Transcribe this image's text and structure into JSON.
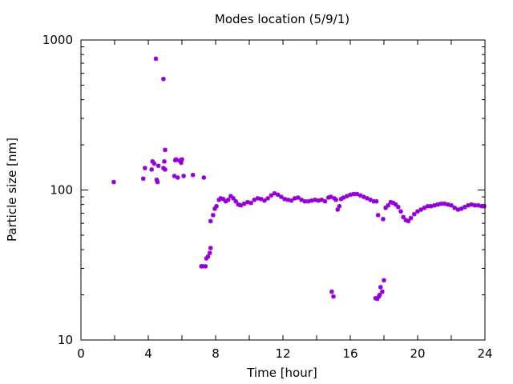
{
  "chart_data": {
    "type": "scatter",
    "title": "Modes location (5/9/1)",
    "xlabel": "Time [hour]",
    "ylabel": "Particle size [nm]",
    "xlim": [
      0,
      24
    ],
    "ylim": [
      10,
      1000
    ],
    "yscale": "log",
    "x_ticks": [
      "0",
      "4",
      "8",
      "12",
      "16",
      "20",
      "24"
    ],
    "y_ticks": [
      "10",
      "100",
      "1000"
    ],
    "grid": false,
    "legend": "none",
    "marker_color": "#9400d3",
    "points": [
      [
        1.95,
        113
      ],
      [
        3.7,
        119
      ],
      [
        3.8,
        140
      ],
      [
        4.2,
        137
      ],
      [
        4.25,
        155
      ],
      [
        4.35,
        150
      ],
      [
        4.45,
        750
      ],
      [
        4.5,
        117
      ],
      [
        4.55,
        113
      ],
      [
        4.6,
        145
      ],
      [
        4.9,
        550
      ],
      [
        4.9,
        140
      ],
      [
        4.95,
        155
      ],
      [
        5.0,
        185
      ],
      [
        5.0,
        137
      ],
      [
        5.55,
        124
      ],
      [
        5.6,
        158
      ],
      [
        5.65,
        160
      ],
      [
        5.75,
        121
      ],
      [
        5.85,
        157
      ],
      [
        5.95,
        152
      ],
      [
        6.0,
        160
      ],
      [
        6.1,
        124
      ],
      [
        6.65,
        126
      ],
      [
        7.15,
        31
      ],
      [
        7.25,
        31
      ],
      [
        7.3,
        121
      ],
      [
        7.4,
        31
      ],
      [
        7.45,
        35
      ],
      [
        7.55,
        36
      ],
      [
        7.65,
        38
      ],
      [
        7.7,
        41
      ],
      [
        7.7,
        62
      ],
      [
        7.85,
        68
      ],
      [
        7.95,
        75
      ],
      [
        8.05,
        78
      ],
      [
        8.2,
        86
      ],
      [
        8.3,
        88
      ],
      [
        8.45,
        87
      ],
      [
        8.6,
        84
      ],
      [
        8.75,
        86
      ],
      [
        8.9,
        91
      ],
      [
        9.05,
        88
      ],
      [
        9.2,
        84
      ],
      [
        9.35,
        80
      ],
      [
        9.5,
        79
      ],
      [
        9.7,
        81
      ],
      [
        9.9,
        83
      ],
      [
        10.1,
        82
      ],
      [
        10.3,
        86
      ],
      [
        10.5,
        88
      ],
      [
        10.7,
        87
      ],
      [
        10.9,
        85
      ],
      [
        11.1,
        88
      ],
      [
        11.3,
        92
      ],
      [
        11.5,
        95
      ],
      [
        11.7,
        93
      ],
      [
        11.9,
        90
      ],
      [
        12.1,
        87
      ],
      [
        12.3,
        86
      ],
      [
        12.5,
        85
      ],
      [
        12.7,
        88
      ],
      [
        12.9,
        89
      ],
      [
        13.1,
        86
      ],
      [
        13.3,
        84
      ],
      [
        13.5,
        84
      ],
      [
        13.7,
        85
      ],
      [
        13.9,
        86
      ],
      [
        14.1,
        85
      ],
      [
        14.3,
        86
      ],
      [
        14.5,
        84
      ],
      [
        14.7,
        89
      ],
      [
        14.85,
        90
      ],
      [
        14.9,
        21
      ],
      [
        15.0,
        19.5
      ],
      [
        15.05,
        88
      ],
      [
        15.15,
        86
      ],
      [
        15.25,
        74
      ],
      [
        15.35,
        78
      ],
      [
        15.45,
        87
      ],
      [
        15.6,
        89
      ],
      [
        15.8,
        91
      ],
      [
        16.0,
        93
      ],
      [
        16.2,
        94
      ],
      [
        16.4,
        94
      ],
      [
        16.6,
        92
      ],
      [
        16.8,
        90
      ],
      [
        17.0,
        88
      ],
      [
        17.2,
        86
      ],
      [
        17.4,
        84
      ],
      [
        17.5,
        19
      ],
      [
        17.55,
        84
      ],
      [
        17.6,
        18.8
      ],
      [
        17.65,
        68
      ],
      [
        17.7,
        19.5
      ],
      [
        17.75,
        20
      ],
      [
        17.8,
        22.5
      ],
      [
        17.9,
        21
      ],
      [
        17.95,
        64
      ],
      [
        18.0,
        25
      ],
      [
        18.1,
        76
      ],
      [
        18.25,
        79
      ],
      [
        18.4,
        83
      ],
      [
        18.55,
        82
      ],
      [
        18.7,
        80
      ],
      [
        18.85,
        77
      ],
      [
        19.0,
        72
      ],
      [
        19.15,
        66
      ],
      [
        19.3,
        63
      ],
      [
        19.45,
        62
      ],
      [
        19.6,
        65
      ],
      [
        19.8,
        69
      ],
      [
        20.0,
        72
      ],
      [
        20.2,
        74
      ],
      [
        20.4,
        76
      ],
      [
        20.6,
        78
      ],
      [
        20.8,
        78
      ],
      [
        21.0,
        79
      ],
      [
        21.2,
        80
      ],
      [
        21.4,
        81
      ],
      [
        21.6,
        81
      ],
      [
        21.8,
        80
      ],
      [
        22.0,
        79
      ],
      [
        22.2,
        76
      ],
      [
        22.4,
        74
      ],
      [
        22.6,
        75
      ],
      [
        22.8,
        77
      ],
      [
        23.0,
        79
      ],
      [
        23.2,
        80
      ],
      [
        23.4,
        79
      ],
      [
        23.6,
        79
      ],
      [
        23.8,
        78
      ],
      [
        23.95,
        78
      ]
    ]
  }
}
